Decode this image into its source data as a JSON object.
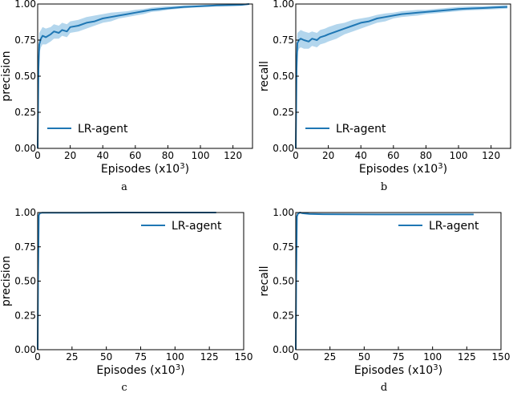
{
  "chart_data": [
    {
      "type": "line",
      "panel": "a",
      "caption": "a",
      "xlabel": "Episodes (x10",
      "xlabel_sup": "3",
      "xlabel_suffix": ")",
      "ylabel": "precision",
      "xlim": [
        0,
        132
      ],
      "ylim": [
        0,
        1.0
      ],
      "xticks": [
        0,
        20,
        40,
        60,
        80,
        100,
        120
      ],
      "yticks": [
        0.0,
        0.25,
        0.5,
        0.75,
        1.0
      ],
      "ytick_labels": [
        "0.00",
        "0.25",
        "0.50",
        "0.75",
        "1.00"
      ],
      "legend_position": "center-left",
      "shaded_band": true,
      "series": [
        {
          "name": "LR-agent",
          "color": "#1f77b4",
          "band_color": "#a6cfea",
          "x": [
            0,
            0.5,
            1,
            2,
            3,
            5,
            8,
            10,
            13,
            15,
            18,
            20,
            25,
            30,
            35,
            40,
            45,
            50,
            55,
            60,
            65,
            70,
            75,
            80,
            85,
            90,
            95,
            100,
            105,
            110,
            115,
            120,
            125,
            130
          ],
          "values": [
            0.0,
            0.55,
            0.72,
            0.76,
            0.78,
            0.77,
            0.79,
            0.81,
            0.8,
            0.82,
            0.81,
            0.84,
            0.85,
            0.87,
            0.88,
            0.9,
            0.91,
            0.92,
            0.93,
            0.94,
            0.95,
            0.96,
            0.965,
            0.97,
            0.975,
            0.98,
            0.982,
            0.985,
            0.987,
            0.99,
            0.991,
            0.992,
            0.994,
            1.0
          ],
          "lower": [
            0.0,
            0.45,
            0.66,
            0.7,
            0.72,
            0.72,
            0.74,
            0.76,
            0.76,
            0.78,
            0.77,
            0.8,
            0.81,
            0.83,
            0.85,
            0.87,
            0.88,
            0.9,
            0.91,
            0.92,
            0.93,
            0.945,
            0.95,
            0.96,
            0.965,
            0.97,
            0.975,
            0.978,
            0.98,
            0.984,
            0.986,
            0.988,
            0.99,
            0.995
          ],
          "upper": [
            0.0,
            0.65,
            0.8,
            0.82,
            0.84,
            0.83,
            0.84,
            0.86,
            0.85,
            0.87,
            0.86,
            0.88,
            0.89,
            0.91,
            0.92,
            0.93,
            0.94,
            0.945,
            0.95,
            0.96,
            0.965,
            0.975,
            0.98,
            0.985,
            0.988,
            0.99,
            0.992,
            0.994,
            0.995,
            0.996,
            0.997,
            0.998,
            0.999,
            1.0
          ]
        }
      ]
    },
    {
      "type": "line",
      "panel": "b",
      "caption": "b",
      "xlabel": "Episodes (x10",
      "xlabel_sup": "3",
      "xlabel_suffix": ")",
      "ylabel": "recall",
      "xlim": [
        0,
        132
      ],
      "ylim": [
        0,
        1.0
      ],
      "xticks": [
        0,
        20,
        40,
        60,
        80,
        100,
        120
      ],
      "yticks": [
        0.0,
        0.25,
        0.5,
        0.75,
        1.0
      ],
      "ytick_labels": [
        "0.00",
        "0.25",
        "0.50",
        "0.75",
        "1.00"
      ],
      "legend_position": "center-left",
      "shaded_band": true,
      "series": [
        {
          "name": "LR-agent",
          "color": "#1f77b4",
          "band_color": "#a6cfea",
          "x": [
            0,
            0.5,
            1,
            2,
            3,
            5,
            8,
            10,
            13,
            15,
            18,
            20,
            25,
            30,
            35,
            40,
            45,
            50,
            55,
            60,
            65,
            70,
            75,
            80,
            85,
            90,
            95,
            100,
            105,
            110,
            115,
            120,
            125,
            130
          ],
          "values": [
            0.0,
            0.55,
            0.73,
            0.75,
            0.76,
            0.75,
            0.74,
            0.76,
            0.75,
            0.77,
            0.78,
            0.79,
            0.81,
            0.83,
            0.85,
            0.87,
            0.88,
            0.9,
            0.91,
            0.92,
            0.93,
            0.935,
            0.94,
            0.945,
            0.95,
            0.955,
            0.96,
            0.965,
            0.968,
            0.97,
            0.972,
            0.975,
            0.978,
            0.98
          ],
          "lower": [
            0.0,
            0.45,
            0.66,
            0.69,
            0.7,
            0.69,
            0.69,
            0.71,
            0.7,
            0.72,
            0.73,
            0.74,
            0.76,
            0.79,
            0.81,
            0.83,
            0.85,
            0.87,
            0.88,
            0.9,
            0.91,
            0.915,
            0.92,
            0.93,
            0.935,
            0.94,
            0.945,
            0.95,
            0.955,
            0.958,
            0.96,
            0.962,
            0.965,
            0.968
          ],
          "upper": [
            0.0,
            0.65,
            0.8,
            0.81,
            0.82,
            0.81,
            0.8,
            0.81,
            0.8,
            0.82,
            0.83,
            0.84,
            0.86,
            0.87,
            0.89,
            0.9,
            0.91,
            0.925,
            0.935,
            0.94,
            0.95,
            0.955,
            0.96,
            0.96,
            0.965,
            0.97,
            0.975,
            0.98,
            0.982,
            0.984,
            0.985,
            0.988,
            0.99,
            0.992
          ]
        }
      ]
    },
    {
      "type": "line",
      "panel": "c",
      "caption": "c",
      "xlabel": "Episodes (x10",
      "xlabel_sup": "3",
      "xlabel_suffix": ")",
      "ylabel": "precision",
      "xlim": [
        0,
        150
      ],
      "ylim": [
        0,
        1.0
      ],
      "xticks": [
        0,
        25,
        50,
        75,
        100,
        125,
        150
      ],
      "yticks": [
        0.0,
        0.25,
        0.5,
        0.75,
        1.0
      ],
      "ytick_labels": [
        "0.00",
        "0.25",
        "0.50",
        "0.75",
        "1.00"
      ],
      "legend_position": "upper-right",
      "shaded_band": false,
      "series": [
        {
          "name": "LR-agent",
          "color": "#1f77b4",
          "x": [
            0,
            0.3,
            0.8,
            1.5,
            3,
            10,
            30,
            60,
            90,
            110,
            130
          ],
          "values": [
            0.0,
            0.5,
            0.98,
            0.995,
            0.998,
            0.999,
            0.999,
            1.0,
            1.0,
            1.0,
            1.0
          ]
        }
      ]
    },
    {
      "type": "line",
      "panel": "d",
      "caption": "d",
      "xlabel": "Episodes (x10",
      "xlabel_sup": "3",
      "xlabel_suffix": ")",
      "ylabel": "recall",
      "xlim": [
        0,
        150
      ],
      "ylim": [
        0,
        1.0
      ],
      "xticks": [
        0,
        25,
        50,
        75,
        100,
        125,
        150
      ],
      "yticks": [
        0.0,
        0.25,
        0.5,
        0.75,
        1.0
      ],
      "ytick_labels": [
        "0.00",
        "0.25",
        "0.50",
        "0.75",
        "1.00"
      ],
      "legend_position": "upper-right",
      "shaded_band": false,
      "series": [
        {
          "name": "LR-agent",
          "color": "#1f77b4",
          "x": [
            0,
            0.3,
            0.8,
            1.5,
            3,
            5,
            10,
            20,
            40,
            60,
            80,
            100,
            115,
            130
          ],
          "values": [
            0.0,
            0.5,
            0.97,
            0.99,
            1.0,
            0.995,
            0.99,
            0.988,
            0.987,
            0.986,
            0.986,
            0.986,
            0.986,
            0.986
          ]
        }
      ]
    }
  ]
}
